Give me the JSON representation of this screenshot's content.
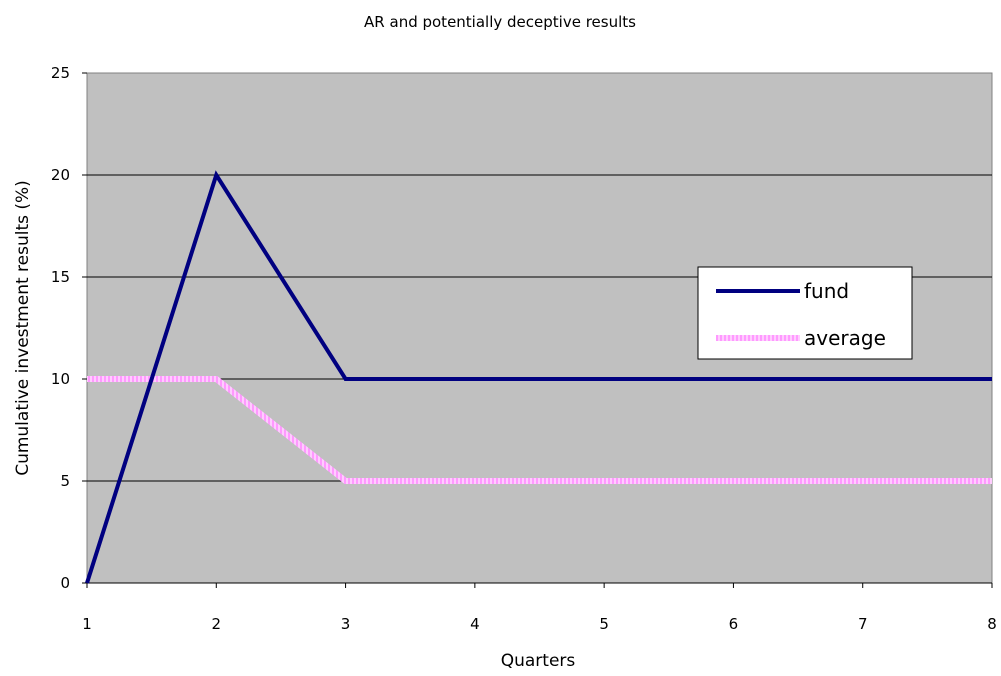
{
  "chart_data": {
    "type": "line",
    "title": "AR and potentially deceptive results",
    "xlabel": "Quarters",
    "ylabel": "Cumulative investment results (%)",
    "x": [
      1,
      2,
      3,
      4,
      5,
      6,
      7,
      8
    ],
    "xlim": [
      1,
      8
    ],
    "ylim": [
      0,
      25
    ],
    "yticks": [
      0,
      5,
      10,
      15,
      20,
      25
    ],
    "grid": "horizontal",
    "legend_position": "right",
    "plot_background": "#c0c0c0",
    "series": [
      {
        "name": "fund",
        "values": [
          0,
          20,
          10,
          10,
          10,
          10,
          10,
          10
        ],
        "color": "#000080",
        "style": "solid"
      },
      {
        "name": "average",
        "values": [
          10,
          10,
          5,
          5,
          5,
          5,
          5,
          5
        ],
        "color": "#ff99ff",
        "style": "striped"
      }
    ]
  }
}
